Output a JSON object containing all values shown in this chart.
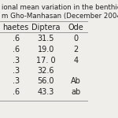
{
  "title_line1": "ional mean variation in the benthic",
  "title_line2": "m Gho-Manhasan (December 2004",
  "col_headers": [
    "haetes",
    "Diptera",
    "Ode"
  ],
  "rows": [
    [
      ".6",
      "31.5",
      "0"
    ],
    [
      ".6",
      "19.0",
      "2"
    ],
    [
      ".3",
      "17. 0",
      "4"
    ],
    [
      ".3",
      "32.6",
      ""
    ],
    [
      ".3",
      "56.0",
      "Ab"
    ],
    [
      ".6",
      "43.3",
      "ab"
    ]
  ],
  "bg_color": "#f0eeeb",
  "header_line_color": "#999999",
  "text_color": "#222222",
  "font_size": 7,
  "title_font_size": 6.2
}
